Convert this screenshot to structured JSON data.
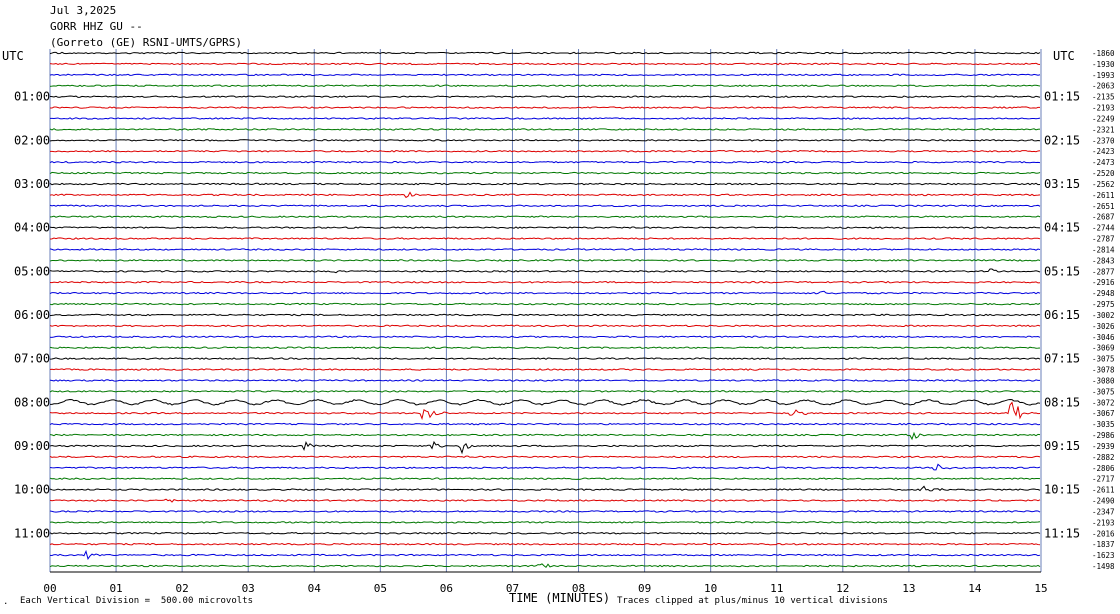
{
  "header": {
    "date": "Jul 3,2025",
    "station": "GORR HHZ GU --",
    "network": "(Gorreto (GE) RSNI-UMTS/GPRS)"
  },
  "footer": {
    "scale_note": "Each Vertical Division =  500.00 microvolts",
    "clip_note": "Traces clipped at plus/minus 10 vertical divisions",
    "corner_mark": "."
  },
  "colors": {
    "trace_cycle": [
      "#000000",
      "#dd0000",
      "#0000dd",
      "#007700"
    ],
    "grid": "#6a7fb8"
  },
  "chart_data": {
    "type": "line",
    "title": "",
    "xlabel": "TIME (MINUTES)",
    "ylabel": "",
    "xlim": [
      0,
      15
    ],
    "x_ticks": [
      "00",
      "01",
      "02",
      "03",
      "04",
      "05",
      "06",
      "07",
      "08",
      "09",
      "10",
      "11",
      "12",
      "13",
      "14",
      "15"
    ],
    "left_header": "UTC",
    "right_header": "UTC",
    "left_labels": [
      "01:00",
      "02:00",
      "03:00",
      "04:00",
      "05:00",
      "06:00",
      "07:00",
      "08:00",
      "09:00",
      "10:00",
      "11:00"
    ],
    "right_labels": [
      "01:15",
      "02:15",
      "03:15",
      "04:15",
      "05:15",
      "06:15",
      "07:15",
      "08:15",
      "09:15",
      "10:15",
      "11:15"
    ],
    "trace_offsets": [
      -1860,
      -1930,
      -1993,
      -2063,
      -2135,
      -2193,
      -2249,
      -2321,
      -2370,
      -2423,
      -2473,
      -2520,
      -2562,
      -2611,
      -2651,
      -2687,
      -2744,
      -2787,
      -2814,
      -2843,
      -2877,
      -2916,
      -2948,
      -2975,
      -3002,
      -3026,
      -3046,
      -3069,
      -3075,
      -3078,
      -3080,
      -3075,
      -3072,
      -3067,
      -3035,
      -2986,
      -2939,
      -2882,
      -2806,
      -2717,
      -2611,
      -2490,
      -2347,
      -2193,
      -2016,
      -1837,
      -1623,
      -1498
    ],
    "events": [
      {
        "trace": 13,
        "minute": 5.4,
        "amplitude": 4
      },
      {
        "trace": 20,
        "minute": 4.25,
        "amplitude": 3
      },
      {
        "trace": 20,
        "minute": 14.25,
        "amplitude": 4
      },
      {
        "trace": 22,
        "minute": 11.65,
        "amplitude": 4
      },
      {
        "trace": 33,
        "minute": 5.65,
        "amplitude": 14
      },
      {
        "trace": 33,
        "minute": 11.2,
        "amplitude": 7
      },
      {
        "trace": 33,
        "minute": 14.55,
        "amplitude": 16
      },
      {
        "trace": 35,
        "minute": 13.05,
        "amplitude": 5
      },
      {
        "trace": 36,
        "minute": 3.85,
        "amplitude": 5
      },
      {
        "trace": 36,
        "minute": 5.8,
        "amplitude": 5
      },
      {
        "trace": 36,
        "minute": 6.2,
        "amplitude": 9
      },
      {
        "trace": 38,
        "minute": 13.4,
        "amplitude": 5
      },
      {
        "trace": 40,
        "minute": 13.2,
        "amplitude": 5
      },
      {
        "trace": 41,
        "minute": 1.75,
        "amplitude": 4
      },
      {
        "trace": 46,
        "minute": 0.55,
        "amplitude": 5
      },
      {
        "trace": 47,
        "minute": 7.4,
        "amplitude": 4
      }
    ]
  }
}
